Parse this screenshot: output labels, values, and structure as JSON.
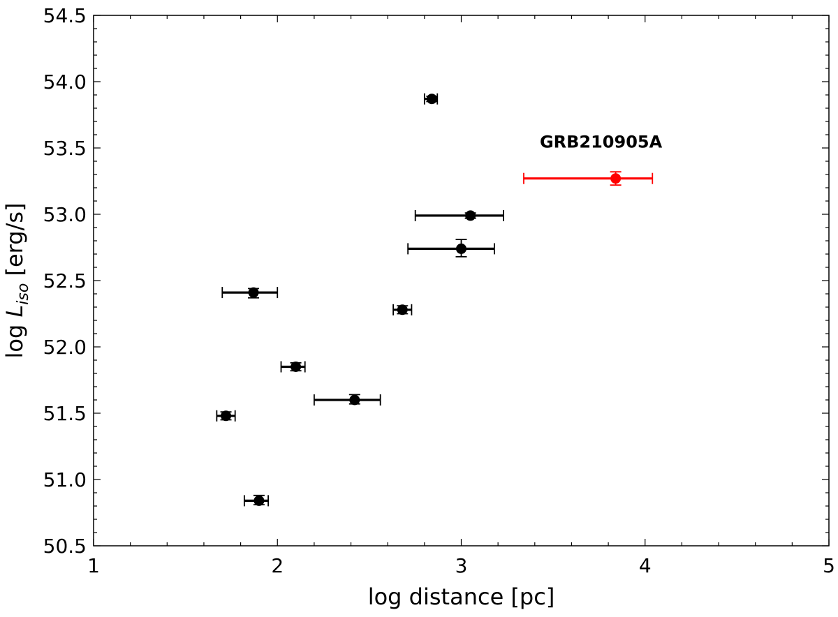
{
  "chart_data": {
    "type": "scatter",
    "xlabel": "log distance [pc]",
    "ylabel_prefix": "log ",
    "ylabel_symbol": "L",
    "ylabel_subscript": "iso",
    "ylabel_suffix": " [erg/s]",
    "xlim": [
      1,
      5
    ],
    "ylim": [
      50.5,
      54.5
    ],
    "x_ticks": [
      1,
      2,
      3,
      4,
      5
    ],
    "x_tick_labels": [
      "1",
      "2",
      "3",
      "4",
      "5"
    ],
    "y_ticks": [
      50.5,
      51.0,
      51.5,
      52.0,
      52.5,
      53.0,
      53.5,
      54.0,
      54.5
    ],
    "y_tick_labels": [
      "50.5",
      "51.0",
      "51.5",
      "52.0",
      "52.5",
      "53.0",
      "53.5",
      "54.0",
      "54.5"
    ],
    "grid": false,
    "series": [
      {
        "color": "#000000",
        "points": [
          {
            "x": 1.9,
            "y": 50.84,
            "xlo": 1.82,
            "xhi": 1.95,
            "ylo": 50.81,
            "yhi": 50.88
          },
          {
            "x": 1.72,
            "y": 51.48,
            "xlo": 1.67,
            "xhi": 1.77,
            "ylo": 51.45,
            "yhi": 51.51
          },
          {
            "x": 2.42,
            "y": 51.6,
            "xlo": 2.2,
            "xhi": 2.56,
            "ylo": 51.57,
            "yhi": 51.64
          },
          {
            "x": 2.1,
            "y": 51.85,
            "xlo": 2.02,
            "xhi": 2.15,
            "ylo": 51.82,
            "yhi": 51.88
          },
          {
            "x": 2.68,
            "y": 52.28,
            "xlo": 2.63,
            "xhi": 2.73,
            "ylo": 52.25,
            "yhi": 52.31
          },
          {
            "x": 1.87,
            "y": 52.41,
            "xlo": 1.7,
            "xhi": 2.0,
            "ylo": 52.37,
            "yhi": 52.44
          },
          {
            "x": 3.0,
            "y": 52.74,
            "xlo": 2.71,
            "xhi": 3.18,
            "ylo": 52.68,
            "yhi": 52.81
          },
          {
            "x": 3.05,
            "y": 52.99,
            "xlo": 2.75,
            "xhi": 3.23,
            "ylo": 52.97,
            "yhi": 53.01
          },
          {
            "x": 2.84,
            "y": 53.87,
            "xlo": 2.8,
            "xhi": 2.87,
            "ylo": 53.85,
            "yhi": 53.89
          }
        ]
      },
      {
        "color": "#ff0000",
        "points": [
          {
            "x": 3.84,
            "y": 53.27,
            "xlo": 3.34,
            "xhi": 4.04,
            "ylo": 53.22,
            "yhi": 53.32
          }
        ]
      }
    ],
    "annotations": [
      {
        "text": "GRB210905A",
        "x": 3.76,
        "y": 53.55
      }
    ]
  }
}
